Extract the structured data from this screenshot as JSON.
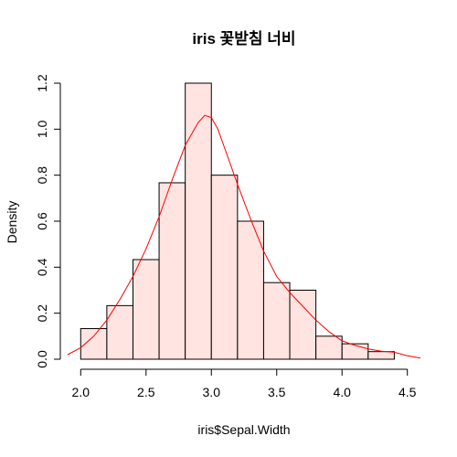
{
  "chart_data": {
    "type": "bar",
    "title": "iris 꽃받침 너비",
    "xlabel": "iris$Sepal.Width",
    "ylabel": "Density",
    "xlim": [
      1.9,
      4.6
    ],
    "ylim": [
      0,
      1.2
    ],
    "x_ticks": [
      2.0,
      2.5,
      3.0,
      3.5,
      4.0,
      4.5
    ],
    "x_tick_labels": [
      "2.0",
      "2.5",
      "3.0",
      "3.5",
      "4.0",
      "4.5"
    ],
    "y_ticks": [
      0.0,
      0.2,
      0.4,
      0.6,
      0.8,
      1.0,
      1.2
    ],
    "y_tick_labels": [
      "0.0",
      "0.2",
      "0.4",
      "0.6",
      "0.8",
      "1.0",
      "1.2"
    ],
    "histogram": {
      "bin_edges": [
        2.0,
        2.2,
        2.4,
        2.6,
        2.8,
        3.0,
        3.2,
        3.4,
        3.6,
        3.8,
        4.0,
        4.2,
        4.4
      ],
      "densities": [
        0.133,
        0.233,
        0.433,
        0.767,
        1.2,
        0.8,
        0.6,
        0.333,
        0.3,
        0.1,
        0.067,
        0.033
      ],
      "fill_color": "#ffe4e1",
      "border_color": "#000000"
    },
    "density_curve": {
      "color": "#ff0000",
      "x": [
        1.9,
        2.0,
        2.1,
        2.2,
        2.3,
        2.4,
        2.5,
        2.6,
        2.7,
        2.8,
        2.9,
        2.95,
        3.0,
        3.05,
        3.1,
        3.2,
        3.3,
        3.4,
        3.5,
        3.6,
        3.7,
        3.8,
        3.9,
        4.0,
        4.1,
        4.2,
        4.3,
        4.4,
        4.5,
        4.6
      ],
      "y": [
        0.02,
        0.05,
        0.1,
        0.17,
        0.26,
        0.36,
        0.48,
        0.62,
        0.78,
        0.93,
        1.03,
        1.06,
        1.05,
        1.0,
        0.92,
        0.76,
        0.61,
        0.47,
        0.36,
        0.29,
        0.23,
        0.17,
        0.12,
        0.08,
        0.06,
        0.045,
        0.035,
        0.03,
        0.015,
        0.005
      ]
    }
  }
}
